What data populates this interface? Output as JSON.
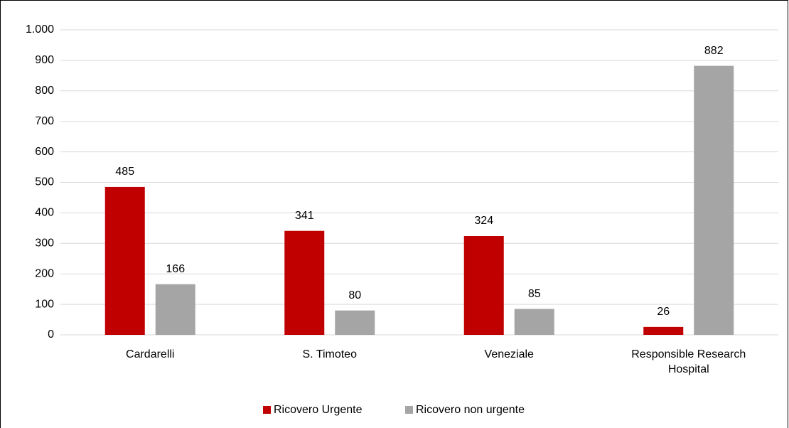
{
  "chart_data": {
    "type": "bar",
    "categories": [
      "Cardarelli",
      "S. Timoteo",
      "Veneziale",
      "Responsible Research Hospital"
    ],
    "series": [
      {
        "name": "Ricovero Urgente",
        "color": "#c00000",
        "values": [
          485,
          341,
          324,
          26
        ]
      },
      {
        "name": "Ricovero non urgente",
        "color": "#a5a5a5",
        "values": [
          166,
          80,
          85,
          882
        ]
      }
    ],
    "ylim": [
      0,
      1000
    ],
    "yticks": [
      0,
      100,
      200,
      300,
      400,
      500,
      600,
      700,
      800,
      900,
      {
        "value": 1000,
        "label": "1.000"
      }
    ],
    "grid": true,
    "legend": "bottom"
  }
}
